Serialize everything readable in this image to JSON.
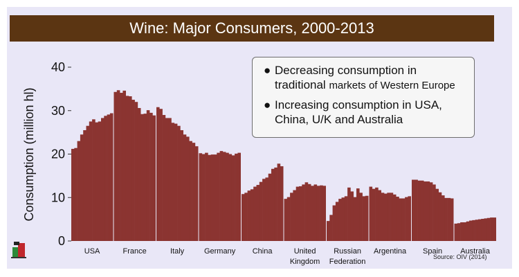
{
  "title": "Wine: Major Consumers, 2000-2013",
  "source": "Source: OIV (2014)",
  "callout": {
    "bullets": [
      {
        "line1": "Decreasing consumption in",
        "line2a": "traditional ",
        "line2b": "markets of Western Europe"
      },
      {
        "line1": "Increasing consumption in USA,",
        "line2a": "China, U/K and Australia",
        "line2b": ""
      }
    ]
  },
  "colors": {
    "bar": "#8b3431",
    "title_bg": "#5b3512",
    "background": "#e9e7f7"
  },
  "chart_data": {
    "type": "bar",
    "ylabel": "Consumption (million hl)",
    "xlabel": "",
    "ylim": [
      0,
      40
    ],
    "yticks": [
      0,
      10,
      20,
      30,
      40
    ],
    "grid": false,
    "groups": [
      {
        "label": "USA",
        "values": [
          21.2,
          21.4,
          23.0,
          24.5,
          25.5,
          26.5,
          27.5,
          28.0,
          27.3,
          27.5,
          28.3,
          28.8,
          29.1,
          29.4
        ]
      },
      {
        "label": "France",
        "values": [
          34.3,
          34.7,
          34.1,
          34.6,
          33.4,
          33.3,
          32.5,
          32.0,
          30.6,
          29.2,
          29.3,
          30.1,
          29.5,
          28.9
        ]
      },
      {
        "label": "Italy",
        "values": [
          30.8,
          30.4,
          29.0,
          28.3,
          28.3,
          27.2,
          27.0,
          26.5,
          25.5,
          24.5,
          24.0,
          23.0,
          22.6,
          21.8
        ]
      },
      {
        "label": "Germany",
        "values": [
          20.2,
          20.0,
          20.3,
          19.8,
          19.9,
          19.9,
          20.3,
          20.7,
          20.5,
          20.3,
          20.0,
          19.7,
          20.1,
          20.3
        ]
      },
      {
        "label": "China",
        "values": [
          10.8,
          11.1,
          11.6,
          11.9,
          12.5,
          12.9,
          13.6,
          14.3,
          14.6,
          15.5,
          16.6,
          16.9,
          17.8,
          17.2
        ]
      },
      {
        "label": "United",
        "label2": "Kingdom",
        "values": [
          9.7,
          10.1,
          11.1,
          11.7,
          12.5,
          12.6,
          13.0,
          13.5,
          13.1,
          12.7,
          13.0,
          12.7,
          12.8,
          12.7
        ]
      },
      {
        "label": "Russian",
        "label2": "Federation",
        "values": [
          4.6,
          6.0,
          8.2,
          9.0,
          9.7,
          10.0,
          10.3,
          12.3,
          11.4,
          10.1,
          12.1,
          11.1,
          10.3,
          10.4
        ]
      },
      {
        "label": "Argentina",
        "values": [
          12.5,
          12.0,
          12.3,
          11.7,
          11.1,
          10.9,
          11.1,
          11.1,
          10.7,
          10.2,
          9.8,
          9.8,
          10.1,
          10.3
        ]
      },
      {
        "label": "Spain",
        "values": [
          14.1,
          14.1,
          13.9,
          13.9,
          13.7,
          13.7,
          13.5,
          13.0,
          12.0,
          11.2,
          10.5,
          9.9,
          9.9,
          9.8
        ]
      },
      {
        "label": "Australia",
        "values": [
          4.0,
          4.1,
          4.3,
          4.3,
          4.5,
          4.7,
          4.8,
          4.9,
          5.0,
          5.1,
          5.2,
          5.3,
          5.4,
          5.4
        ]
      }
    ]
  }
}
